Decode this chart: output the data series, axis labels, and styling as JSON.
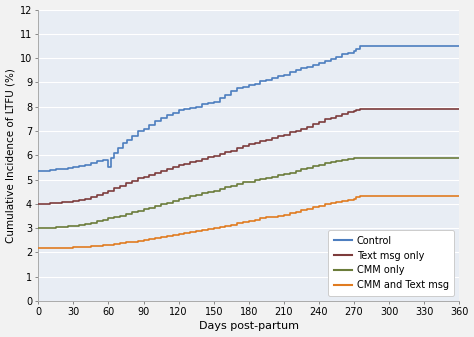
{
  "title": "",
  "xlabel": "Days post-partum",
  "ylabel": "Cumulative Incidence of LTFU (%)",
  "xlim": [
    0,
    360
  ],
  "ylim": [
    0,
    12
  ],
  "xticks": [
    0,
    30,
    60,
    90,
    120,
    150,
    180,
    210,
    240,
    270,
    300,
    330,
    360
  ],
  "yticks": [
    0,
    1,
    2,
    3,
    4,
    5,
    6,
    7,
    8,
    9,
    10,
    11,
    12
  ],
  "fig_facecolor": "#f0f0f0",
  "ax_facecolor": "#e8edf4",
  "grid_color": "#ffffff",
  "series": {
    "Control": {
      "color": "#4d7ebf",
      "steps": [
        [
          0,
          5.35
        ],
        [
          5,
          5.35
        ],
        [
          10,
          5.38
        ],
        [
          15,
          5.42
        ],
        [
          20,
          5.45
        ],
        [
          25,
          5.48
        ],
        [
          30,
          5.5
        ],
        [
          35,
          5.55
        ],
        [
          40,
          5.62
        ],
        [
          45,
          5.7
        ],
        [
          50,
          5.75
        ],
        [
          55,
          5.82
        ],
        [
          60,
          5.5
        ],
        [
          62,
          5.9
        ],
        [
          65,
          6.1
        ],
        [
          68,
          6.3
        ],
        [
          72,
          6.5
        ],
        [
          76,
          6.65
        ],
        [
          80,
          6.8
        ],
        [
          85,
          7.0
        ],
        [
          90,
          7.1
        ],
        [
          95,
          7.25
        ],
        [
          100,
          7.4
        ],
        [
          105,
          7.55
        ],
        [
          110,
          7.65
        ],
        [
          115,
          7.75
        ],
        [
          120,
          7.85
        ],
        [
          125,
          7.92
        ],
        [
          130,
          7.95
        ],
        [
          135,
          8.0
        ],
        [
          140,
          8.1
        ],
        [
          145,
          8.15
        ],
        [
          150,
          8.2
        ],
        [
          155,
          8.35
        ],
        [
          160,
          8.5
        ],
        [
          165,
          8.65
        ],
        [
          170,
          8.75
        ],
        [
          175,
          8.82
        ],
        [
          180,
          8.88
        ],
        [
          185,
          8.95
        ],
        [
          190,
          9.05
        ],
        [
          195,
          9.12
        ],
        [
          200,
          9.18
        ],
        [
          205,
          9.25
        ],
        [
          210,
          9.32
        ],
        [
          215,
          9.42
        ],
        [
          220,
          9.5
        ],
        [
          225,
          9.58
        ],
        [
          230,
          9.65
        ],
        [
          235,
          9.72
        ],
        [
          240,
          9.78
        ],
        [
          245,
          9.88
        ],
        [
          250,
          9.97
        ],
        [
          255,
          10.05
        ],
        [
          260,
          10.15
        ],
        [
          265,
          10.22
        ],
        [
          270,
          10.3
        ],
        [
          272,
          10.38
        ],
        [
          275,
          10.5
        ],
        [
          280,
          10.5
        ],
        [
          360,
          10.5
        ]
      ]
    },
    "Text msg only": {
      "color": "#7d3c3c",
      "steps": [
        [
          0,
          4.0
        ],
        [
          5,
          4.0
        ],
        [
          10,
          4.02
        ],
        [
          15,
          4.04
        ],
        [
          20,
          4.06
        ],
        [
          25,
          4.08
        ],
        [
          30,
          4.1
        ],
        [
          35,
          4.15
        ],
        [
          40,
          4.2
        ],
        [
          45,
          4.28
        ],
        [
          50,
          4.35
        ],
        [
          55,
          4.45
        ],
        [
          60,
          4.55
        ],
        [
          65,
          4.65
        ],
        [
          70,
          4.75
        ],
        [
          75,
          4.85
        ],
        [
          80,
          4.95
        ],
        [
          85,
          5.05
        ],
        [
          90,
          5.12
        ],
        [
          95,
          5.2
        ],
        [
          100,
          5.28
        ],
        [
          105,
          5.35
        ],
        [
          110,
          5.42
        ],
        [
          115,
          5.5
        ],
        [
          120,
          5.58
        ],
        [
          125,
          5.65
        ],
        [
          130,
          5.72
        ],
        [
          135,
          5.78
        ],
        [
          140,
          5.85
        ],
        [
          145,
          5.92
        ],
        [
          150,
          5.98
        ],
        [
          155,
          6.05
        ],
        [
          160,
          6.12
        ],
        [
          165,
          6.18
        ],
        [
          170,
          6.28
        ],
        [
          175,
          6.38
        ],
        [
          180,
          6.45
        ],
        [
          185,
          6.52
        ],
        [
          190,
          6.58
        ],
        [
          195,
          6.65
        ],
        [
          200,
          6.72
        ],
        [
          205,
          6.78
        ],
        [
          210,
          6.85
        ],
        [
          215,
          6.95
        ],
        [
          220,
          7.02
        ],
        [
          225,
          7.1
        ],
        [
          230,
          7.18
        ],
        [
          235,
          7.28
        ],
        [
          240,
          7.38
        ],
        [
          245,
          7.48
        ],
        [
          250,
          7.55
        ],
        [
          255,
          7.62
        ],
        [
          260,
          7.7
        ],
        [
          265,
          7.78
        ],
        [
          270,
          7.82
        ],
        [
          272,
          7.88
        ],
        [
          275,
          7.9
        ],
        [
          280,
          7.9
        ],
        [
          360,
          7.9
        ]
      ]
    },
    "CMM only": {
      "color": "#6b7c3a",
      "steps": [
        [
          0,
          3.0
        ],
        [
          5,
          3.0
        ],
        [
          10,
          3.02
        ],
        [
          15,
          3.04
        ],
        [
          20,
          3.06
        ],
        [
          25,
          3.08
        ],
        [
          30,
          3.1
        ],
        [
          35,
          3.14
        ],
        [
          40,
          3.18
        ],
        [
          45,
          3.22
        ],
        [
          50,
          3.28
        ],
        [
          55,
          3.34
        ],
        [
          60,
          3.4
        ],
        [
          65,
          3.46
        ],
        [
          70,
          3.52
        ],
        [
          75,
          3.58
        ],
        [
          80,
          3.65
        ],
        [
          85,
          3.72
        ],
        [
          90,
          3.78
        ],
        [
          95,
          3.85
        ],
        [
          100,
          3.92
        ],
        [
          105,
          3.98
        ],
        [
          110,
          4.05
        ],
        [
          115,
          4.12
        ],
        [
          120,
          4.18
        ],
        [
          125,
          4.25
        ],
        [
          130,
          4.32
        ],
        [
          135,
          4.38
        ],
        [
          140,
          4.44
        ],
        [
          145,
          4.5
        ],
        [
          150,
          4.55
        ],
        [
          155,
          4.62
        ],
        [
          160,
          4.68
        ],
        [
          165,
          4.75
        ],
        [
          170,
          4.82
        ],
        [
          175,
          4.88
        ],
        [
          180,
          4.92
        ],
        [
          185,
          4.97
        ],
        [
          190,
          5.02
        ],
        [
          195,
          5.08
        ],
        [
          200,
          5.12
        ],
        [
          205,
          5.18
        ],
        [
          210,
          5.22
        ],
        [
          215,
          5.28
        ],
        [
          220,
          5.34
        ],
        [
          225,
          5.42
        ],
        [
          230,
          5.48
        ],
        [
          235,
          5.55
        ],
        [
          240,
          5.62
        ],
        [
          245,
          5.68
        ],
        [
          250,
          5.72
        ],
        [
          255,
          5.76
        ],
        [
          260,
          5.8
        ],
        [
          265,
          5.84
        ],
        [
          270,
          5.88
        ],
        [
          272,
          5.9
        ],
        [
          275,
          5.9
        ],
        [
          360,
          5.9
        ]
      ]
    },
    "CMM and Text msg": {
      "color": "#e07b20",
      "steps": [
        [
          0,
          2.18
        ],
        [
          5,
          2.18
        ],
        [
          10,
          2.19
        ],
        [
          15,
          2.2
        ],
        [
          20,
          2.2
        ],
        [
          25,
          2.2
        ],
        [
          30,
          2.21
        ],
        [
          35,
          2.22
        ],
        [
          40,
          2.23
        ],
        [
          45,
          2.25
        ],
        [
          50,
          2.27
        ],
        [
          55,
          2.3
        ],
        [
          60,
          2.32
        ],
        [
          65,
          2.35
        ],
        [
          70,
          2.38
        ],
        [
          75,
          2.42
        ],
        [
          80,
          2.45
        ],
        [
          85,
          2.48
        ],
        [
          90,
          2.52
        ],
        [
          95,
          2.56
        ],
        [
          100,
          2.6
        ],
        [
          105,
          2.64
        ],
        [
          110,
          2.68
        ],
        [
          115,
          2.72
        ],
        [
          120,
          2.76
        ],
        [
          125,
          2.8
        ],
        [
          130,
          2.85
        ],
        [
          135,
          2.9
        ],
        [
          140,
          2.94
        ],
        [
          145,
          2.98
        ],
        [
          150,
          3.02
        ],
        [
          155,
          3.06
        ],
        [
          160,
          3.1
        ],
        [
          165,
          3.15
        ],
        [
          170,
          3.2
        ],
        [
          175,
          3.25
        ],
        [
          180,
          3.3
        ],
        [
          185,
          3.35
        ],
        [
          190,
          3.4
        ],
        [
          195,
          3.44
        ],
        [
          200,
          3.48
        ],
        [
          205,
          3.52
        ],
        [
          210,
          3.56
        ],
        [
          215,
          3.62
        ],
        [
          220,
          3.68
        ],
        [
          225,
          3.74
        ],
        [
          230,
          3.8
        ],
        [
          235,
          3.86
        ],
        [
          240,
          3.92
        ],
        [
          245,
          3.98
        ],
        [
          250,
          4.02
        ],
        [
          255,
          4.06
        ],
        [
          260,
          4.1
        ],
        [
          265,
          4.15
        ],
        [
          270,
          4.22
        ],
        [
          272,
          4.28
        ],
        [
          275,
          4.32
        ],
        [
          280,
          4.32
        ],
        [
          360,
          4.32
        ]
      ]
    }
  },
  "linewidth": 1.2
}
